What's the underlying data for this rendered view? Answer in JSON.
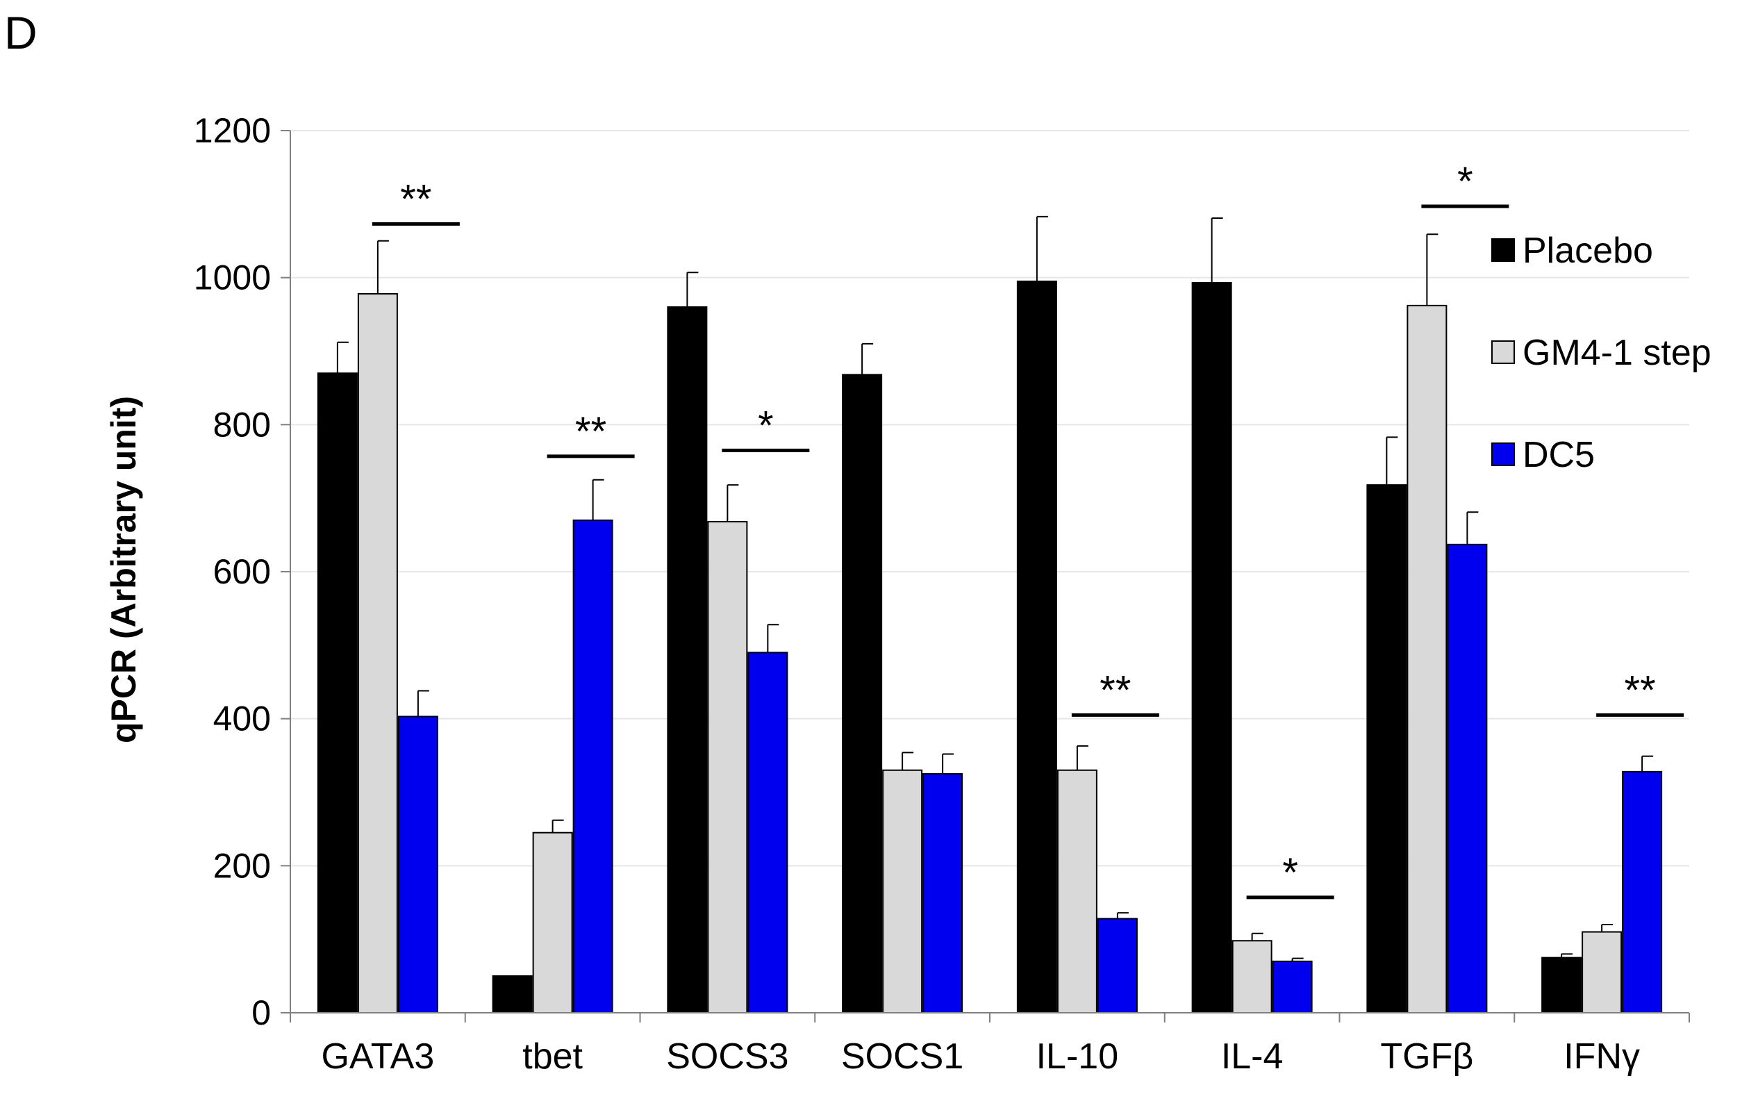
{
  "panel_label": "D",
  "colors": {
    "Placebo": "#000000",
    "GM4-1 step": "#d9d9d9",
    "DC5": "#0000ee",
    "gridline": "#e6e6e6",
    "axis": "#808080"
  },
  "chart_data": {
    "type": "bar",
    "title": "",
    "xlabel": "",
    "ylabel": "qPCR (Arbitrary unit)",
    "ylim": [
      0,
      1200
    ],
    "yticks": [
      0,
      200,
      400,
      600,
      800,
      1000,
      1200
    ],
    "grid": true,
    "legend_position": "right",
    "categories": [
      "GATA3",
      "tbet",
      "SOCS3",
      "SOCS1",
      "IL-10",
      "IL-4",
      "TGFβ",
      "IFNγ"
    ],
    "series": [
      {
        "name": "Placebo",
        "values": [
          870,
          50,
          960,
          868,
          995,
          993,
          718,
          75
        ],
        "errors": [
          42,
          0,
          47,
          42,
          88,
          88,
          65,
          5
        ]
      },
      {
        "name": "GM4-1 step",
        "values": [
          978,
          245,
          668,
          330,
          330,
          98,
          962,
          110
        ],
        "errors": [
          72,
          17,
          50,
          24,
          33,
          10,
          97,
          10
        ]
      },
      {
        "name": "DC5",
        "values": [
          403,
          670,
          490,
          325,
          128,
          70,
          637,
          328
        ],
        "errors": [
          35,
          55,
          38,
          27,
          8,
          4,
          44,
          21
        ]
      }
    ],
    "significance": [
      {
        "category_index": 0,
        "label": "**",
        "y": 1073
      },
      {
        "category_index": 1,
        "label": "**",
        "y": 757
      },
      {
        "category_index": 2,
        "label": "*",
        "y": 765
      },
      {
        "category_index": 4,
        "label": "**",
        "y": 405
      },
      {
        "category_index": 5,
        "label": "*",
        "y": 157
      },
      {
        "category_index": 6,
        "label": "*",
        "y": 1097
      },
      {
        "category_index": 7,
        "label": "**",
        "y": 405
      }
    ]
  }
}
